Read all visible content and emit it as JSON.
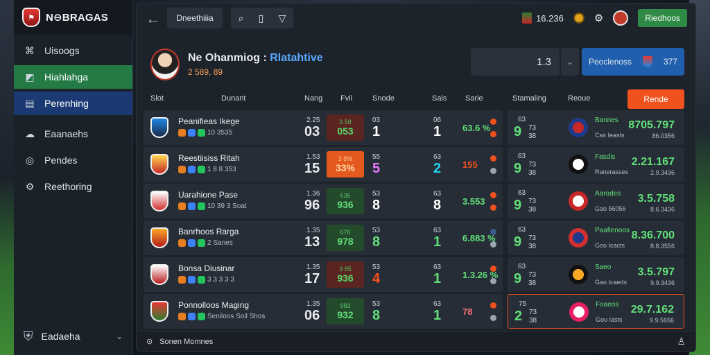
{
  "sidebar": {
    "brand": "N⊖BRAGAS",
    "items": [
      {
        "label": "Uisoogs",
        "icon": "leaf-icon",
        "state": ""
      },
      {
        "label": "Hiahlahga",
        "icon": "chart-icon",
        "state": "active"
      },
      {
        "label": "Perenhing",
        "icon": "document-icon",
        "state": "active2"
      },
      {
        "label": "Eaanaehs",
        "icon": "cloud-icon",
        "state": ""
      },
      {
        "label": "Pendes",
        "icon": "target-icon",
        "state": ""
      },
      {
        "label": "Reethoring",
        "icon": "gear-icon",
        "state": ""
      }
    ],
    "footer": "Eadaeha"
  },
  "topbar": {
    "crumb": "Dneethiiia",
    "right_value": "16.236",
    "green_button": "Riedhoos"
  },
  "profile": {
    "title": "Ne Ohanmiog :",
    "highlight": "Rlatahtive",
    "sub": "2 589, 89"
  },
  "score_box": "1.3",
  "blue_box": {
    "label": "Peoclenoss",
    "value": "377"
  },
  "table_head": {
    "team": "Slot",
    "club": "Dunant",
    "played": "Nang",
    "form": "Fvil",
    "wins": "Snode",
    "scores": "Sais",
    "pct": "Sarie",
    "standing": "Stamaling",
    "result": "Reoue",
    "orange": "Rende"
  },
  "rows": [
    {
      "team": "Peanifieas Ikege",
      "sub": "10 3535",
      "played_small": "2.25",
      "played": "03",
      "pill_top": "3 58",
      "pill_val": "053",
      "pill": "red",
      "w_small": "03",
      "w": "1",
      "w_color": "#ffffff",
      "s_small": "06",
      "s": "1",
      "s_color": "#ffffff",
      "pct": "63.6 %",
      "pct_color": "#62e07a",
      "dot1": "#f0521e",
      "dot2": "#f0521e",
      "r_small": "63",
      "r_big": "9",
      "r_mid1": "73",
      "r_mid2": "38",
      "r_name1": "Bannes",
      "r_name2": "Cas Ieasts",
      "r_val": "8705.797",
      "r_val2": "86.0356",
      "crest": [
        "#1e88e5",
        "#1b2a4a"
      ],
      "logo": [
        "#c62828",
        "#1e3a8a"
      ]
    },
    {
      "team": "Reestiisiss Ritah",
      "sub": "1 8 8 353",
      "played_small": "1.53",
      "played": "15",
      "pill_top": "3 8%",
      "pill_val": "33%",
      "pill": "orange",
      "w_small": "55",
      "w": "5",
      "w_color": "#e879f9",
      "s_small": "63",
      "s": "2",
      "s_color": "#22d3ee",
      "pct": "155",
      "pct_color": "#f0521e",
      "dot1": "#f0521e",
      "dot2": "#9aa5b1",
      "r_small": "63",
      "r_big": "9",
      "r_mid1": "73",
      "r_mid2": "38",
      "r_name1": "Fasdis",
      "r_name2": "Ranerasses",
      "r_val": "2.21.167",
      "r_val2": "2.9.3436",
      "crest": [
        "#ffd54f",
        "#c62828"
      ],
      "logo": [
        "#ffffff",
        "#111111"
      ]
    },
    {
      "team": "Uarahione Pase",
      "sub": "10 39 3 Soat",
      "played_small": "1.36",
      "played": "96",
      "pill_top": "636",
      "pill_val": "936",
      "pill": "green",
      "w_small": "53",
      "w": "8",
      "w_color": "#ffffff",
      "s_small": "63",
      "s": "8",
      "s_color": "#ffffff",
      "pct": "3.553",
      "pct_color": "#62e07a",
      "dot1": "#f0521e",
      "dot2": "#f0521e",
      "r_small": "63",
      "r_big": "9",
      "r_mid1": "73",
      "r_mid2": "38",
      "r_name1": "Aarodes",
      "r_name2": "Gao 56056",
      "r_val": "3.5.758",
      "r_val2": "8.6.3436",
      "crest": [
        "#ffffff",
        "#d32f2f"
      ],
      "logo": [
        "#ffffff",
        "#c62828"
      ]
    },
    {
      "team": "Banrhoos Rarga",
      "sub": "2 Sanes",
      "played_small": "1.35",
      "played": "13",
      "pill_top": "676",
      "pill_val": "978",
      "pill": "green",
      "w_small": "53",
      "w": "8",
      "w_color": "#62e07a",
      "s_small": "63",
      "s": "1",
      "s_color": "#62e07a",
      "pct": "6.883 %",
      "pct_color": "#62e07a",
      "dot1": "#3b5b8a",
      "dot2": "#9aa5b1",
      "r_small": "63",
      "r_big": "9",
      "r_mid1": "73",
      "r_mid2": "38",
      "r_name1": "Paafienoos",
      "r_name2": "Goo Icacts",
      "r_val": "8.36.700",
      "r_val2": "8.8.3556",
      "crest": [
        "#f9a825",
        "#b71c1c"
      ],
      "logo": [
        "#1e3a8a",
        "#d32f2f"
      ]
    },
    {
      "team": "Bonsa Diusinar",
      "sub": "3 3 3 3 3",
      "played_small": "1.35",
      "played": "17",
      "pill_top": "3 85",
      "pill_val": "936",
      "pill": "red",
      "w_small": "53",
      "w": "4",
      "w_color": "#f0521e",
      "s_small": "63",
      "s": "1",
      "s_color": "#62e07a",
      "pct": "1.3.26 %",
      "pct_color": "#62e07a",
      "dot1": "#f0521e",
      "dot2": "#9aa5b1",
      "r_small": "63",
      "r_big": "9",
      "r_mid1": "73",
      "r_mid2": "38",
      "r_name1": "Saeo",
      "r_name2": "Gao Icaeds",
      "r_val": "3.5.797",
      "r_val2": "9.9.3436",
      "crest": [
        "#ffffff",
        "#b71c1c"
      ],
      "logo": [
        "#f9a825",
        "#111111"
      ]
    },
    {
      "team": "Ponnolloos Maging",
      "sub": "Seniloos Soil Shos",
      "played_small": "1.35",
      "played": "06",
      "pill_top": "983",
      "pill_val": "932",
      "pill": "green",
      "w_small": "53",
      "w": "8",
      "w_color": "#62e07a",
      "s_small": "63",
      "s": "1",
      "s_color": "#62e07a",
      "pct": "78",
      "pct_color": "#f87171",
      "dot1": "#f0521e",
      "dot2": "#9aa5b1",
      "r_small": "75",
      "r_big": "2",
      "r_mid1": "73",
      "r_mid2": "38",
      "r_name1": "Foaeos",
      "r_name2": "Gou Iasts",
      "r_val": "29.7.162",
      "r_val2": "9.9.5656",
      "crest": [
        "#e53935",
        "#2e7d32"
      ],
      "logo": [
        "#ffffff",
        "#e91e63"
      ],
      "highlight": true
    }
  ],
  "bottombar": "Sonen Momnes"
}
